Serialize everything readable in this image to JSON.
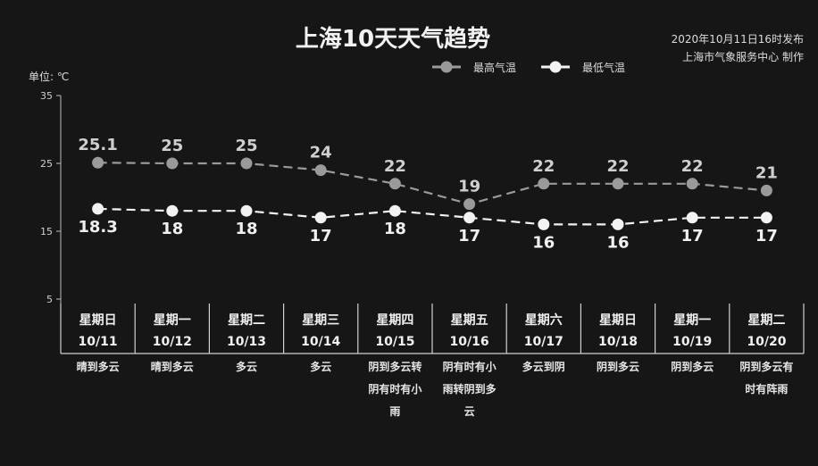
{
  "chart_data": {
    "type": "line",
    "title": "上海10天天气趋势",
    "publish_time": "2020年10月11日16时发布",
    "publisher": "上海市气象服务中心 制作",
    "unit_label": "单位: ℃",
    "ylim": [
      5,
      35
    ],
    "yticks": [
      "35",
      "25",
      "15",
      "5"
    ],
    "categories": [
      {
        "day": "星期日",
        "date": "10/11",
        "weather": [
          "晴到多云"
        ]
      },
      {
        "day": "星期一",
        "date": "10/12",
        "weather": [
          "晴到多云"
        ]
      },
      {
        "day": "星期二",
        "date": "10/13",
        "weather": [
          "多云"
        ]
      },
      {
        "day": "星期三",
        "date": "10/14",
        "weather": [
          "多云"
        ]
      },
      {
        "day": "星期四",
        "date": "10/15",
        "weather": [
          "阴到多云转",
          "阴有时有小",
          "雨"
        ]
      },
      {
        "day": "星期五",
        "date": "10/16",
        "weather": [
          "阴有时有小",
          "雨转阴到多",
          "云"
        ]
      },
      {
        "day": "星期六",
        "date": "10/17",
        "weather": [
          "多云到阴"
        ]
      },
      {
        "day": "星期日",
        "date": "10/18",
        "weather": [
          "阴到多云"
        ]
      },
      {
        "day": "星期一",
        "date": "10/19",
        "weather": [
          "阴到多云"
        ]
      },
      {
        "day": "星期二",
        "date": "10/20",
        "weather": [
          "阴到多云有",
          "时有阵雨"
        ]
      }
    ],
    "series": [
      {
        "name": "最高气温",
        "color": "#9a9a9a",
        "values": [
          25.1,
          25,
          25,
          24,
          22,
          19,
          22,
          22,
          22,
          21
        ],
        "labels": [
          "25.1",
          "25",
          "25",
          "24",
          "22",
          "19",
          "22",
          "22",
          "22",
          "21"
        ]
      },
      {
        "name": "最低气温",
        "color": "#f2f2f2",
        "values": [
          18.3,
          18,
          18,
          17,
          18,
          17,
          16,
          16,
          17,
          17
        ],
        "labels": [
          "18.3",
          "18",
          "18",
          "17",
          "18",
          "17",
          "16",
          "16",
          "17",
          "17"
        ]
      }
    ],
    "legend_position": "top-center",
    "grid": false
  }
}
